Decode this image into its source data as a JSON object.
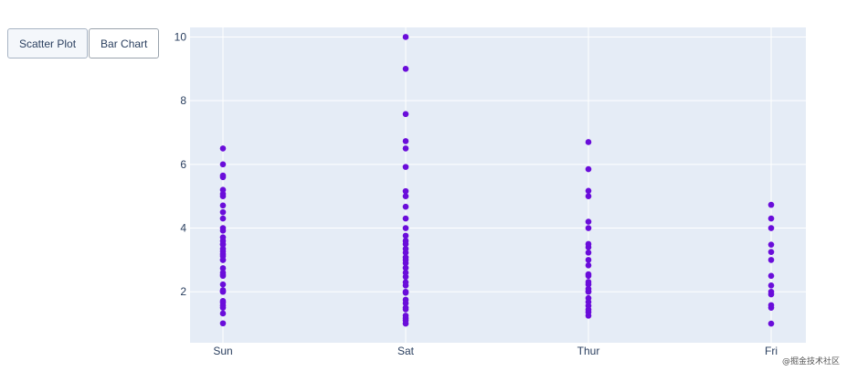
{
  "buttons": [
    {
      "label": "Scatter Plot",
      "active": true
    },
    {
      "label": "Bar Chart",
      "active": false
    }
  ],
  "watermark": "@掘金技术社区",
  "colors": {
    "marker": "#6a0dda",
    "plot_bg": "#e5ecf6",
    "grid": "#ffffff",
    "tick_text": "#2a3f5f"
  },
  "chart_data": {
    "type": "scatter",
    "title": "",
    "xlabel": "",
    "ylabel": "",
    "categories": [
      "Sun",
      "Sat",
      "Thur",
      "Fri"
    ],
    "ylim": [
      0.4,
      10.3
    ],
    "yticks": [
      2,
      4,
      6,
      8,
      10
    ],
    "grid": true,
    "series": [
      {
        "values": {
          "Sun": [
            1.01,
            1.32,
            1.5,
            1.57,
            1.66,
            1.71,
            2.0,
            2.01,
            2.05,
            2.23,
            2.5,
            2.54,
            2.6,
            2.74,
            3.0,
            3.0,
            3.12,
            3.18,
            3.27,
            3.35,
            3.48,
            3.5,
            3.6,
            3.71,
            3.92,
            4.0,
            4.3,
            4.5,
            4.71,
            5.0,
            5.07,
            5.2,
            5.6,
            5.65,
            6.0,
            6.5
          ],
          "Sat": [
            1.0,
            1.1,
            1.17,
            1.25,
            1.45,
            1.5,
            1.64,
            1.75,
            1.97,
            2.0,
            2.2,
            2.3,
            2.47,
            2.6,
            2.75,
            2.9,
            3.0,
            3.08,
            3.23,
            3.35,
            3.5,
            3.6,
            3.76,
            4.0,
            4.3,
            4.67,
            5.0,
            5.16,
            5.92,
            6.5,
            6.73,
            7.58,
            9.0,
            10.0
          ],
          "Thur": [
            1.25,
            1.36,
            1.44,
            1.56,
            1.68,
            1.8,
            2.0,
            2.01,
            2.09,
            2.23,
            2.31,
            2.5,
            2.55,
            2.83,
            3.0,
            3.23,
            3.4,
            3.5,
            4.0,
            4.2,
            5.0,
            5.17,
            5.85,
            6.7
          ],
          "Fri": [
            1.0,
            1.5,
            1.58,
            1.92,
            2.0,
            2.2,
            2.5,
            3.0,
            3.25,
            3.48,
            4.0,
            4.3,
            4.73
          ]
        }
      }
    ]
  }
}
